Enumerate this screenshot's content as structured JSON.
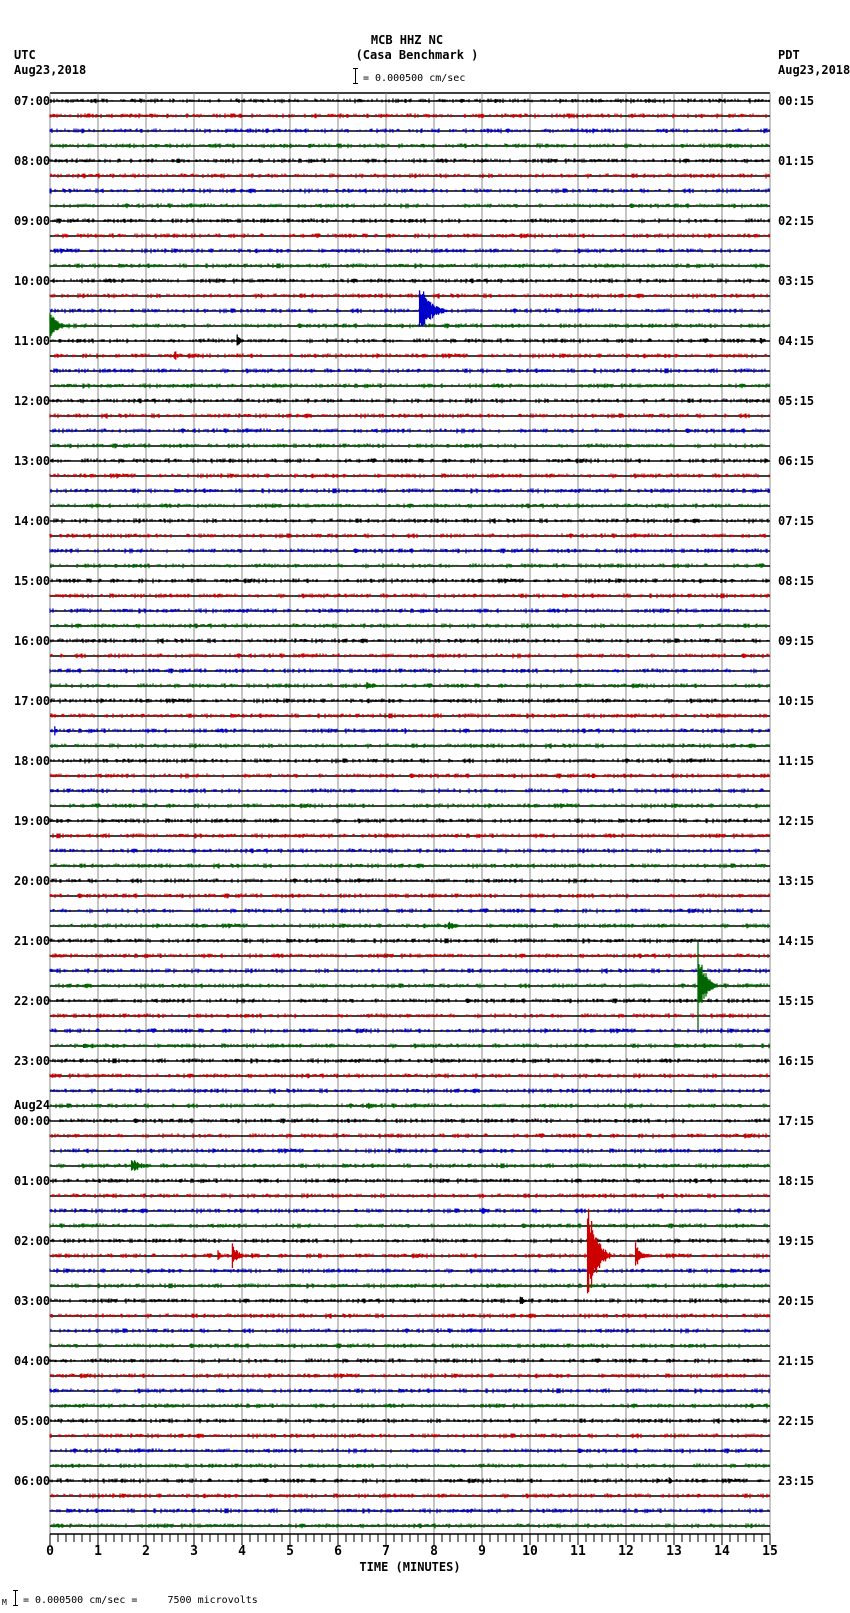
{
  "header": {
    "station": "MCB HHZ NC",
    "station_name": "(Casa Benchmark )",
    "scale_text": "= 0.000500 cm/sec",
    "left_tz": "UTC",
    "left_date": "Aug23,2018",
    "right_tz": "PDT",
    "right_date": "Aug23,2018"
  },
  "footer": {
    "scale_prefix": "M",
    "scale_text": "= 0.000500 cm/sec =     7500 microvolts"
  },
  "chart_data": {
    "type": "line",
    "title": "MCB HHZ NC (Casa Benchmark )",
    "xlabel": "TIME (MINUTES)",
    "ylabel": "",
    "xlim": [
      0,
      15
    ],
    "x_ticks": [
      "0",
      "1",
      "2",
      "3",
      "4",
      "5",
      "6",
      "7",
      "8",
      "9",
      "10",
      "11",
      "12",
      "13",
      "14",
      "15"
    ],
    "grid": true,
    "trace_minutes": 15,
    "trace_count": 96,
    "trace_colors": [
      "#000000",
      "#cc0000",
      "#0000cc",
      "#006600"
    ],
    "left_hour_labels": [
      {
        "row": 0,
        "text": "07:00"
      },
      {
        "row": 4,
        "text": "08:00"
      },
      {
        "row": 8,
        "text": "09:00"
      },
      {
        "row": 12,
        "text": "10:00"
      },
      {
        "row": 16,
        "text": "11:00"
      },
      {
        "row": 20,
        "text": "12:00"
      },
      {
        "row": 24,
        "text": "13:00"
      },
      {
        "row": 28,
        "text": "14:00"
      },
      {
        "row": 32,
        "text": "15:00"
      },
      {
        "row": 36,
        "text": "16:00"
      },
      {
        "row": 40,
        "text": "17:00"
      },
      {
        "row": 44,
        "text": "18:00"
      },
      {
        "row": 48,
        "text": "19:00"
      },
      {
        "row": 52,
        "text": "20:00"
      },
      {
        "row": 56,
        "text": "21:00"
      },
      {
        "row": 60,
        "text": "22:00"
      },
      {
        "row": 64,
        "text": "23:00"
      },
      {
        "row": 68,
        "text": "00:00",
        "date": "Aug24"
      },
      {
        "row": 72,
        "text": "01:00"
      },
      {
        "row": 76,
        "text": "02:00"
      },
      {
        "row": 80,
        "text": "03:00"
      },
      {
        "row": 84,
        "text": "04:00"
      },
      {
        "row": 88,
        "text": "05:00"
      },
      {
        "row": 92,
        "text": "06:00"
      }
    ],
    "right_hour_labels": [
      {
        "row": 0,
        "text": "00:15"
      },
      {
        "row": 4,
        "text": "01:15"
      },
      {
        "row": 8,
        "text": "02:15"
      },
      {
        "row": 12,
        "text": "03:15"
      },
      {
        "row": 16,
        "text": "04:15"
      },
      {
        "row": 20,
        "text": "05:15"
      },
      {
        "row": 24,
        "text": "06:15"
      },
      {
        "row": 28,
        "text": "07:15"
      },
      {
        "row": 32,
        "text": "08:15"
      },
      {
        "row": 36,
        "text": "09:15"
      },
      {
        "row": 40,
        "text": "10:15"
      },
      {
        "row": 44,
        "text": "11:15"
      },
      {
        "row": 48,
        "text": "12:15"
      },
      {
        "row": 52,
        "text": "13:15"
      },
      {
        "row": 56,
        "text": "14:15"
      },
      {
        "row": 60,
        "text": "15:15"
      },
      {
        "row": 64,
        "text": "16:15"
      },
      {
        "row": 68,
        "text": "17:15"
      },
      {
        "row": 72,
        "text": "18:15"
      },
      {
        "row": 76,
        "text": "19:15"
      },
      {
        "row": 80,
        "text": "20:15"
      },
      {
        "row": 84,
        "text": "21:15"
      },
      {
        "row": 88,
        "text": "22:15"
      },
      {
        "row": 92,
        "text": "23:15"
      }
    ],
    "events": [
      {
        "row": 4,
        "minute": 9.0,
        "amp": 3,
        "dur": 0.3
      },
      {
        "row": 13,
        "minute": 4.4,
        "amp": 3,
        "dur": 0.2
      },
      {
        "row": 14,
        "minute": 7.7,
        "amp": 30,
        "dur": 0.6
      },
      {
        "row": 15,
        "minute": 0.0,
        "amp": 14,
        "dur": 0.5
      },
      {
        "row": 16,
        "minute": 3.9,
        "amp": 7,
        "dur": 0.2
      },
      {
        "row": 16,
        "minute": 14.8,
        "amp": 4,
        "dur": 0.2
      },
      {
        "row": 17,
        "minute": 2.6,
        "amp": 7,
        "dur": 0.15
      },
      {
        "row": 30,
        "minute": 12.2,
        "amp": 3,
        "dur": 0.3
      },
      {
        "row": 39,
        "minute": 6.6,
        "amp": 4,
        "dur": 0.6
      },
      {
        "row": 42,
        "minute": 0.1,
        "amp": 6,
        "dur": 0.1
      },
      {
        "row": 42,
        "minute": 7.4,
        "amp": 4,
        "dur": 0.1
      },
      {
        "row": 45,
        "minute": 11.3,
        "amp": 4,
        "dur": 0.3
      },
      {
        "row": 55,
        "minute": 8.3,
        "amp": 6,
        "dur": 0.4
      },
      {
        "row": 59,
        "minute": 13.5,
        "amp": 45,
        "dur": 0.4
      },
      {
        "row": 63,
        "minute": 0.7,
        "amp": 4,
        "dur": 0.4
      },
      {
        "row": 67,
        "minute": 6.6,
        "amp": 4,
        "dur": 0.6
      },
      {
        "row": 71,
        "minute": 1.7,
        "amp": 8,
        "dur": 0.6
      },
      {
        "row": 73,
        "minute": 9.0,
        "amp": 3,
        "dur": 0.2
      },
      {
        "row": 74,
        "minute": 9.0,
        "amp": 4,
        "dur": 0.3
      },
      {
        "row": 77,
        "minute": 3.5,
        "amp": 6,
        "dur": 0.2
      },
      {
        "row": 77,
        "minute": 3.8,
        "amp": 16,
        "dur": 0.3
      },
      {
        "row": 77,
        "minute": 4.2,
        "amp": 4,
        "dur": 0.2
      },
      {
        "row": 77,
        "minute": 5.6,
        "amp": 4,
        "dur": 0.15
      },
      {
        "row": 77,
        "minute": 11.2,
        "amp": 60,
        "dur": 0.5
      },
      {
        "row": 77,
        "minute": 12.2,
        "amp": 14,
        "dur": 0.3
      },
      {
        "row": 80,
        "minute": 9.8,
        "amp": 7,
        "dur": 0.2
      },
      {
        "row": 92,
        "minute": 12.9,
        "amp": 5,
        "dur": 0.15
      }
    ]
  },
  "axis": {
    "xlabel": "TIME (MINUTES)"
  }
}
